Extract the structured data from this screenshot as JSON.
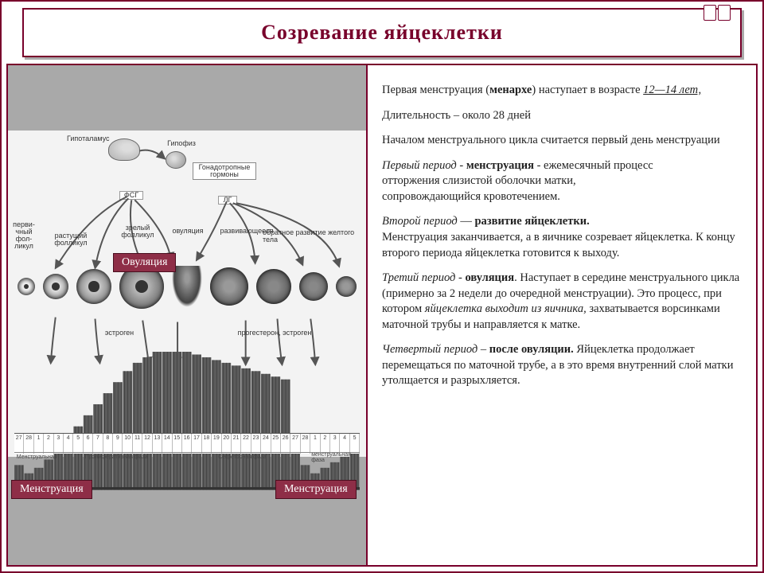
{
  "title": "Созревание  яйцеклетки",
  "tags": {
    "ovulation": "Овуляция",
    "menstruation_left": "Менструация",
    "menstruation_right": "Менструация"
  },
  "diagram": {
    "type": "infographic",
    "background_color": "#a9a9a9",
    "diagram_bg": "#f3f3f3",
    "small_labels": {
      "hypothalamus": "Гипоталамус",
      "pituitary": "Гипофиз",
      "gonadotropic": "Гонадотропные\nгормоны",
      "fsh": "ФСГ",
      "lh": "ЛГ",
      "primary_follicle": "перви-\nчный\nфол-\nликул",
      "growing_follicle": "растущий\nфолликул",
      "mature_follicle": "зрелый\nфолликул",
      "ovulation_small": "овуляция",
      "developing_cl": "развивающееся",
      "cl_regression": "обратное развитие желтого тела",
      "estrogen": "эстроген",
      "progesterone": "прогестерон, эстроген",
      "menstrual_phase": "Менструальная",
      "proliferative": "Пролиферативная фаза",
      "secretory": "Секреторная фаза",
      "menstrual_phase2": "менструальная\nфаза"
    },
    "timeline_days": [
      "27",
      "28",
      "1",
      "2",
      "3",
      "4",
      "5",
      "6",
      "7",
      "8",
      "9",
      "10",
      "11",
      "12",
      "13",
      "14",
      "15",
      "16",
      "17",
      "18",
      "19",
      "20",
      "21",
      "22",
      "23",
      "24",
      "25",
      "26",
      "27",
      "28",
      "1",
      "2",
      "3",
      "4",
      "5"
    ],
    "follicles": [
      {
        "class": "f1"
      },
      {
        "class": "f2"
      },
      {
        "class": "f3"
      },
      {
        "class": "f4"
      },
      {
        "class": "ov-burst"
      },
      {
        "class": "cl1"
      },
      {
        "class": "cl2"
      },
      {
        "class": "cl3"
      },
      {
        "class": "cl4"
      }
    ],
    "endometrium": {
      "heights_pct": [
        18,
        12,
        16,
        22,
        30,
        38,
        46,
        54,
        62,
        70,
        78,
        86,
        92,
        96,
        100,
        100,
        100,
        100,
        98,
        96,
        94,
        92,
        90,
        88,
        86,
        84,
        82,
        80,
        40,
        18,
        12,
        16,
        20,
        24,
        28
      ],
      "fill_color": "#5c5c5c",
      "stripe_color": "#2f2f2f"
    },
    "tag_color": "#8e2e47",
    "accent_color": "#78002b"
  },
  "text": {
    "p1a": "Первая менструация (",
    "p1b": "менархе",
    "p1c": ") наступает в возрасте  ",
    "p1d": "12—14 лет,   ",
    "p2": "Длительность – около 28 дней",
    "p3": "   Началом менструального цикла считается первый день  менструации",
    "p4a": "   Первый период",
    "p4b": " - ",
    "p4c": "менструация",
    "p4d": " - ежемесячный процесс",
    "p4e": "    отторжения слизистой оболочки матки,",
    "p4f": "    сопровождающийся кровотечением.",
    "p5a": "Второй период",
    "p5b": " — ",
    "p5c": "развитие яйцеклетки.",
    "p5d": "     Менструация заканчивается, а в яичнике созревает яйцеклетка. К концу второго периода яйцеклетка готовится к выходу.",
    "p6a": "Третий период",
    "p6b": " - ",
    "p6c": "овуляция",
    "p6d": ". Наступает в середине менструального цикла (примерно за 2 недели до очередной менструации). Это процесс, при котором ",
    "p6e": "яйцеклетка выходит из яичника,",
    "p6f": " захватывается ворсинками маточной трубы и направляется к матке.",
    "p7a": " Четвертый период",
    "p7b": " – ",
    "p7c": "после овуляции.",
    "p7d": " Яйцеклетка продолжает перемещаться по маточной трубе, а в это время внутренний слой матки утолщается и разрыхляется."
  }
}
